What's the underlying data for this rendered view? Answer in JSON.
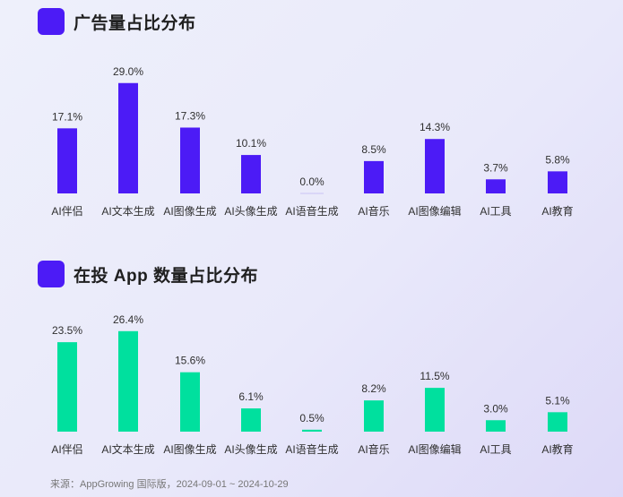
{
  "colors": {
    "marker": "#4c1bf6",
    "chart1_bar": "#4c1bf6",
    "chart2_bar": "#00e09e"
  },
  "chart_data": [
    {
      "type": "bar",
      "title": "广告量占比分布",
      "categories": [
        "AI伴侣",
        "AI文本生成",
        "AI图像生成",
        "AI头像生成",
        "AI语音生成",
        "AI音乐",
        "AI图像编辑",
        "AI工具",
        "AI教育"
      ],
      "values": [
        17.1,
        29.0,
        17.3,
        10.1,
        0.0,
        8.5,
        14.3,
        3.7,
        5.8
      ],
      "value_labels": [
        "17.1%",
        "29.0%",
        "17.3%",
        "10.1%",
        "0.0%",
        "8.5%",
        "14.3%",
        "3.7%",
        "5.8%"
      ],
      "ylim": [
        0,
        30
      ]
    },
    {
      "type": "bar",
      "title": "在投 App 数量占比分布",
      "categories": [
        "AI伴侣",
        "AI文本生成",
        "AI图像生成",
        "AI头像生成",
        "AI语音生成",
        "AI音乐",
        "AI图像编辑",
        "AI工具",
        "AI教育"
      ],
      "values": [
        23.5,
        26.4,
        15.6,
        6.1,
        0.5,
        8.2,
        11.5,
        3.0,
        5.1
      ],
      "value_labels": [
        "23.5%",
        "26.4%",
        "15.6%",
        "6.1%",
        "0.5%",
        "8.2%",
        "11.5%",
        "3.0%",
        "5.1%"
      ],
      "ylim": [
        0,
        30
      ]
    }
  ],
  "footer": "来源：AppGrowing 国际版，2024-09-01 ~ 2024-10-29"
}
